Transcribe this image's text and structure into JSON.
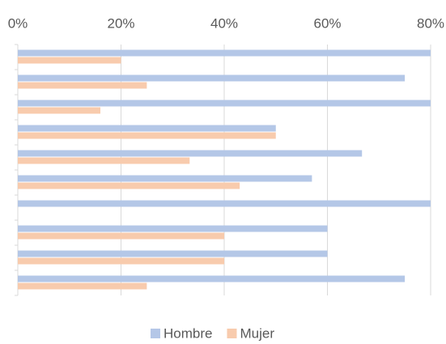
{
  "chart_data": {
    "type": "bar",
    "orientation": "horizontal",
    "categories": [
      null,
      null,
      null,
      null,
      null,
      null,
      null,
      null,
      null,
      null
    ],
    "series": [
      {
        "name": "Hombre",
        "color": "#b4c7e7",
        "values": [
          80,
          75,
          80,
          50,
          66.7,
          57,
          80,
          60,
          60,
          75
        ]
      },
      {
        "name": "Mujer",
        "color": "#f8cbad",
        "values": [
          20,
          25,
          16,
          50,
          33.3,
          43,
          0,
          40,
          40,
          25
        ]
      }
    ],
    "xlim": [
      0,
      80
    ],
    "xticks": [
      {
        "value": 0,
        "label": "0%"
      },
      {
        "value": 20,
        "label": "20%"
      },
      {
        "value": 40,
        "label": "40%"
      },
      {
        "value": 60,
        "label": "60%"
      },
      {
        "value": 80,
        "label": "80%"
      }
    ],
    "grid": true,
    "legend": "bottom"
  }
}
